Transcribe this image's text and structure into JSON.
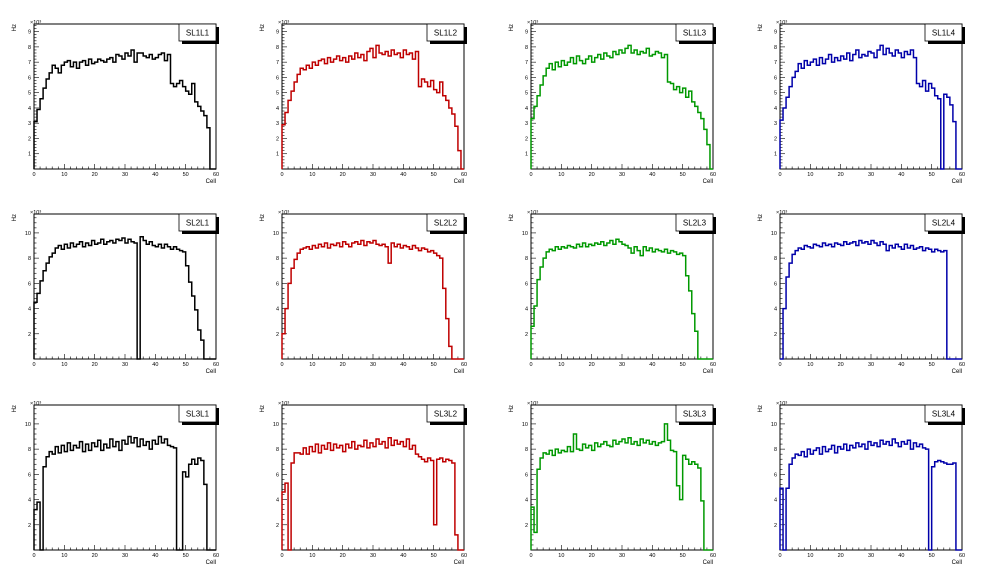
{
  "chart_data": [
    {
      "type": "histogram",
      "title": "SL1L1",
      "xlabel": "Cell",
      "ylabel": "Hz",
      "ylim": [
        0,
        9.5
      ],
      "scale_label": "×10³",
      "x_ticks": [
        "0",
        "10",
        "20",
        "30",
        "40",
        "50",
        "60"
      ],
      "y_ticks": [
        "1",
        "2",
        "3",
        "4",
        "5",
        "6",
        "7",
        "8",
        "9"
      ],
      "color": "#000000",
      "values": [
        3.1,
        3.9,
        4.6,
        5.3,
        5.9,
        6.3,
        6.8,
        6.6,
        6.3,
        6.8,
        7.0,
        7.1,
        6.7,
        7.0,
        6.6,
        7.0,
        7.1,
        6.8,
        7.2,
        6.9,
        7.0,
        7.2,
        7.1,
        7.0,
        7.2,
        7.3,
        7.0,
        7.5,
        7.4,
        7.2,
        7.6,
        7.4,
        7.8,
        7.0,
        7.6,
        7.6,
        7.4,
        7.3,
        7.5,
        7.2,
        7.3,
        7.5,
        7.6,
        7.1,
        7.5,
        5.6,
        5.4,
        5.6,
        5.8,
        5.4,
        5.1,
        4.9,
        5.6,
        4.4,
        4.1,
        3.8,
        3.5,
        2.7,
        0,
        0
      ]
    },
    {
      "type": "histogram",
      "title": "SL1L2",
      "xlabel": "Cell",
      "ylabel": "Hz",
      "ylim": [
        0,
        9.5
      ],
      "scale_label": "×10³",
      "x_ticks": [
        "0",
        "10",
        "20",
        "30",
        "40",
        "50",
        "60"
      ],
      "y_ticks": [
        "1",
        "2",
        "3",
        "4",
        "5",
        "6",
        "7",
        "8",
        "9"
      ],
      "color": "#bf0000",
      "values": [
        2.9,
        3.7,
        4.5,
        5.1,
        5.7,
        6.2,
        6.6,
        6.5,
        6.8,
        6.6,
        7.0,
        6.8,
        7.1,
        7.2,
        6.9,
        7.3,
        7.0,
        7.2,
        7.4,
        7.1,
        7.3,
        7.0,
        7.4,
        7.2,
        7.6,
        7.3,
        7.5,
        7.1,
        7.7,
        7.9,
        7.3,
        8.1,
        7.6,
        7.5,
        7.7,
        7.4,
        7.8,
        7.5,
        7.6,
        7.3,
        7.8,
        7.5,
        7.6,
        7.2,
        7.7,
        5.4,
        5.9,
        5.7,
        5.4,
        5.8,
        5.2,
        5.0,
        5.7,
        4.8,
        4.5,
        4.0,
        3.6,
        2.8,
        1.2,
        0
      ]
    },
    {
      "type": "histogram",
      "title": "SL1L3",
      "xlabel": "Cell",
      "ylabel": "Hz",
      "ylim": [
        0,
        9.5
      ],
      "scale_label": "×10³",
      "x_ticks": [
        "0",
        "10",
        "20",
        "30",
        "40",
        "50",
        "60"
      ],
      "y_ticks": [
        "1",
        "2",
        "3",
        "4",
        "5",
        "6",
        "7",
        "8",
        "9"
      ],
      "color": "#009900",
      "values": [
        3.3,
        4.1,
        4.8,
        5.5,
        6.1,
        6.6,
        6.9,
        6.5,
        7.0,
        6.7,
        7.1,
        6.8,
        7.0,
        7.3,
        6.9,
        7.4,
        7.1,
        6.9,
        7.2,
        7.4,
        7.0,
        7.3,
        7.5,
        7.2,
        7.6,
        7.4,
        7.3,
        7.7,
        7.5,
        7.8,
        7.6,
        7.9,
        8.1,
        7.6,
        7.8,
        7.5,
        7.7,
        7.6,
        7.9,
        7.4,
        7.5,
        7.7,
        7.6,
        7.3,
        7.5,
        5.7,
        5.6,
        5.2,
        5.4,
        5.0,
        5.3,
        4.7,
        5.1,
        4.4,
        4.1,
        3.7,
        3.3,
        2.6,
        1.6,
        0
      ]
    },
    {
      "type": "histogram",
      "title": "SL1L4",
      "xlabel": "Cell",
      "ylabel": "Hz",
      "ylim": [
        0,
        9.5
      ],
      "scale_label": "×10³",
      "x_ticks": [
        "0",
        "10",
        "20",
        "30",
        "40",
        "50",
        "60"
      ],
      "y_ticks": [
        "1",
        "2",
        "3",
        "4",
        "5",
        "6",
        "7",
        "8",
        "9"
      ],
      "color": "#0000aa",
      "values": [
        3.2,
        4.0,
        4.7,
        5.4,
        6.0,
        6.4,
        6.9,
        6.6,
        7.1,
        6.8,
        7.0,
        7.2,
        6.8,
        7.3,
        6.9,
        7.2,
        7.5,
        7.0,
        7.3,
        7.1,
        7.4,
        7.2,
        7.6,
        7.1,
        7.5,
        7.8,
        7.3,
        7.5,
        7.4,
        7.7,
        7.6,
        7.3,
        7.8,
        8.1,
        7.5,
        7.9,
        7.6,
        7.4,
        7.8,
        7.6,
        7.3,
        7.7,
        7.5,
        7.8,
        7.3,
        5.6,
        5.4,
        5.8,
        5.1,
        5.6,
        5.3,
        4.8,
        4.6,
        0,
        4.9,
        4.7,
        4.2,
        3.1,
        0,
        0
      ]
    },
    {
      "type": "histogram",
      "title": "SL2L1",
      "xlabel": "Cell",
      "ylabel": "Hz",
      "ylim": [
        0,
        11.5
      ],
      "scale_label": "×10³",
      "x_ticks": [
        "0",
        "10",
        "20",
        "30",
        "40",
        "50",
        "60"
      ],
      "y_ticks": [
        "2",
        "4",
        "6",
        "8",
        "10"
      ],
      "color": "#000000",
      "values": [
        4.5,
        5.2,
        6.2,
        7.0,
        7.6,
        8.1,
        8.4,
        8.8,
        9.0,
        8.7,
        9.1,
        8.8,
        9.2,
        8.9,
        9.1,
        9.3,
        8.9,
        9.2,
        9.0,
        9.4,
        9.1,
        9.2,
        9.5,
        9.1,
        9.3,
        9.4,
        9.2,
        9.5,
        9.4,
        9.6,
        9.2,
        9.5,
        9.3,
        9.2,
        0,
        9.7,
        9.4,
        9.1,
        9.3,
        9.0,
        8.9,
        9.1,
        8.8,
        9.1,
        8.9,
        8.7,
        8.9,
        8.7,
        8.6,
        8.5,
        7.4,
        6.1,
        5.0,
        3.9,
        2.3,
        1.5,
        0,
        0,
        0,
        0
      ]
    },
    {
      "type": "histogram",
      "title": "SL2L2",
      "xlabel": "Cell",
      "ylabel": "Hz",
      "ylim": [
        0,
        11.5
      ],
      "scale_label": "×10³",
      "x_ticks": [
        "0",
        "10",
        "20",
        "30",
        "40",
        "50",
        "60"
      ],
      "y_ticks": [
        "2",
        "4",
        "6",
        "8",
        "10"
      ],
      "color": "#bf0000",
      "values": [
        2.0,
        4.0,
        6.0,
        7.2,
        7.9,
        8.4,
        8.7,
        8.8,
        8.9,
        8.7,
        9.0,
        8.8,
        9.1,
        8.9,
        9.2,
        8.8,
        9.1,
        9.0,
        9.2,
        8.9,
        9.3,
        9.1,
        8.9,
        9.2,
        9.3,
        9.1,
        9.4,
        9.0,
        9.3,
        9.2,
        9.4,
        9.1,
        9.0,
        9.1,
        8.9,
        7.6,
        9.2,
        8.9,
        9.1,
        8.8,
        9.0,
        8.9,
        8.7,
        9.0,
        8.8,
        8.6,
        8.8,
        8.7,
        8.5,
        8.6,
        8.4,
        8.2,
        8.0,
        5.6,
        3.2,
        1.0,
        0,
        0,
        0,
        0
      ]
    },
    {
      "type": "histogram",
      "title": "SL2L3",
      "xlabel": "Cell",
      "ylabel": "Hz",
      "ylim": [
        0,
        11.5
      ],
      "scale_label": "×10³",
      "x_ticks": [
        "0",
        "10",
        "20",
        "30",
        "40",
        "50",
        "60"
      ],
      "y_ticks": [
        "2",
        "4",
        "6",
        "8",
        "10"
      ],
      "color": "#009900",
      "values": [
        2.6,
        4.2,
        6.3,
        7.3,
        8.0,
        8.5,
        8.7,
        8.6,
        8.9,
        8.7,
        8.9,
        8.8,
        9.0,
        8.9,
        8.8,
        9.1,
        8.9,
        9.2,
        8.9,
        9.1,
        9.0,
        9.2,
        9.1,
        9.3,
        9.0,
        9.2,
        9.4,
        9.1,
        9.5,
        9.3,
        9.1,
        9.0,
        8.8,
        8.4,
        8.9,
        8.6,
        8.2,
        8.9,
        8.6,
        8.8,
        8.5,
        8.7,
        8.6,
        8.5,
        8.7,
        8.4,
        8.6,
        8.5,
        8.3,
        8.4,
        8.2,
        6.6,
        5.4,
        3.6,
        2.2,
        0,
        0,
        0,
        0,
        0
      ]
    },
    {
      "type": "histogram",
      "title": "SL2L4",
      "xlabel": "Cell",
      "ylabel": "Hz",
      "ylim": [
        0,
        11.5
      ],
      "scale_label": "×10³",
      "x_ticks": [
        "0",
        "10",
        "20",
        "30",
        "40",
        "50",
        "60"
      ],
      "y_ticks": [
        "2",
        "4",
        "6",
        "8",
        "10"
      ],
      "color": "#0000aa",
      "values": [
        0,
        4.0,
        6.5,
        7.6,
        8.3,
        8.6,
        8.8,
        8.7,
        9.0,
        8.9,
        8.8,
        9.1,
        9.0,
        8.9,
        9.2,
        9.0,
        9.1,
        8.9,
        9.2,
        9.1,
        9.0,
        9.3,
        9.1,
        9.2,
        9.3,
        9.0,
        9.4,
        9.2,
        9.3,
        9.1,
        9.4,
        9.2,
        9.0,
        9.3,
        9.1,
        8.6,
        9.0,
        8.8,
        9.1,
        8.9,
        8.7,
        9.1,
        8.8,
        9.0,
        8.7,
        8.8,
        8.9,
        8.6,
        8.8,
        8.7,
        8.5,
        8.7,
        8.6,
        8.5,
        8.6,
        0,
        0,
        0,
        0,
        0
      ]
    },
    {
      "type": "histogram",
      "title": "SL3L1",
      "xlabel": "Cell",
      "ylabel": "Hz",
      "ylim": [
        0,
        11.5
      ],
      "scale_label": "×10³",
      "x_ticks": [
        "0",
        "10",
        "20",
        "30",
        "40",
        "50",
        "60"
      ],
      "y_ticks": [
        "2",
        "4",
        "6",
        "8",
        "10"
      ],
      "color": "#000000",
      "values": [
        3.2,
        3.8,
        0,
        6.6,
        7.4,
        7.8,
        7.6,
        8.2,
        7.7,
        8.3,
        7.8,
        8.5,
        7.9,
        8.3,
        8.1,
        8.6,
        7.8,
        8.4,
        7.9,
        8.5,
        8.2,
        8.7,
        7.9,
        8.4,
        8.1,
        8.8,
        8.2,
        8.6,
        7.9,
        8.7,
        8.4,
        9.0,
        8.5,
        8.9,
        8.2,
        8.8,
        8.3,
        8.6,
        8.0,
        8.7,
        8.4,
        9.0,
        8.5,
        8.8,
        8.3,
        8.2,
        8.1,
        0,
        0,
        6.2,
        5.8,
        6.8,
        7.2,
        6.8,
        7.3,
        7.1,
        5.2,
        0,
        0,
        0
      ]
    },
    {
      "type": "histogram",
      "title": "SL3L2",
      "xlabel": "Cell",
      "ylabel": "Hz",
      "ylim": [
        0,
        11.5
      ],
      "scale_label": "×10³",
      "x_ticks": [
        "0",
        "10",
        "20",
        "30",
        "40",
        "50",
        "60"
      ],
      "y_ticks": [
        "2",
        "4",
        "6",
        "8",
        "10"
      ],
      "color": "#bf0000",
      "values": [
        4.6,
        5.3,
        0,
        6.9,
        7.7,
        7.7,
        7.6,
        8.1,
        7.6,
        8.2,
        7.8,
        8.4,
        7.7,
        8.3,
        8.0,
        8.5,
        7.9,
        8.4,
        8.1,
        8.3,
        7.8,
        8.4,
        8.1,
        8.6,
        8.0,
        8.3,
        8.2,
        8.7,
        8.1,
        8.5,
        8.2,
        8.8,
        8.4,
        8.6,
        8.1,
        8.9,
        8.3,
        8.7,
        8.4,
        8.6,
        8.2,
        8.8,
        8.0,
        8.3,
        7.6,
        7.4,
        7.2,
        7.0,
        7.3,
        7.1,
        2.0,
        7.2,
        7.3,
        7.0,
        7.2,
        7.1,
        6.9,
        1.2,
        0,
        0
      ]
    },
    {
      "type": "histogram",
      "title": "SL3L3",
      "xlabel": "Cell",
      "ylabel": "Hz",
      "ylim": [
        0,
        11.5
      ],
      "scale_label": "×10³",
      "x_ticks": [
        "0",
        "10",
        "20",
        "30",
        "40",
        "50",
        "60"
      ],
      "y_ticks": [
        "2",
        "4",
        "6",
        "8",
        "10"
      ],
      "color": "#009900",
      "values": [
        3.4,
        1.4,
        6.4,
        7.3,
        7.7,
        7.6,
        7.9,
        7.5,
        8.0,
        7.7,
        7.9,
        7.8,
        8.2,
        7.8,
        9.2,
        8.0,
        7.9,
        8.4,
        8.1,
        8.3,
        7.9,
        8.5,
        8.2,
        8.4,
        8.6,
        8.3,
        8.2,
        8.7,
        8.4,
        8.6,
        8.8,
        8.5,
        8.9,
        8.4,
        8.6,
        8.3,
        8.8,
        8.5,
        8.7,
        8.4,
        8.6,
        8.3,
        8.5,
        8.6,
        10.0,
        8.7,
        7.9,
        7.8,
        5.1,
        4.0,
        7.5,
        7.2,
        6.8,
        7.0,
        6.8,
        6.5,
        3.9,
        0,
        0,
        0
      ]
    },
    {
      "type": "histogram",
      "title": "SL3L4",
      "xlabel": "Cell",
      "ylabel": "Hz",
      "ylim": [
        0,
        11.5
      ],
      "scale_label": "×10³",
      "x_ticks": [
        "0",
        "10",
        "20",
        "30",
        "40",
        "50",
        "60"
      ],
      "y_ticks": [
        "2",
        "4",
        "6",
        "8",
        "10"
      ],
      "color": "#0000aa",
      "values": [
        4.9,
        0,
        4.9,
        6.8,
        7.3,
        7.6,
        7.5,
        7.8,
        7.4,
        8.0,
        7.6,
        7.9,
        8.1,
        7.6,
        8.2,
        7.8,
        8.0,
        8.3,
        7.7,
        8.2,
        8.0,
        8.4,
        7.9,
        8.3,
        8.1,
        8.5,
        8.2,
        8.4,
        8.0,
        8.6,
        8.3,
        8.5,
        8.2,
        8.7,
        8.4,
        8.6,
        8.3,
        8.8,
        8.5,
        8.2,
        8.6,
        8.4,
        8.7,
        8.0,
        8.5,
        8.2,
        8.4,
        8.1,
        8.0,
        0,
        6.6,
        7.0,
        7.1,
        7.0,
        6.9,
        6.8,
        6.8,
        6.9,
        0,
        0
      ]
    }
  ]
}
